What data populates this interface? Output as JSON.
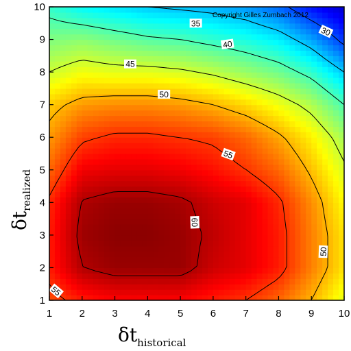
{
  "chart_data": {
    "type": "heatmap",
    "subtype": "contour",
    "copyright": "Copyright Gilles Zumbach 2012",
    "x": [
      1,
      2,
      3,
      4,
      5,
      6,
      7,
      8,
      9,
      10
    ],
    "y": [
      1,
      2,
      3,
      4,
      5,
      6,
      7,
      8,
      9,
      10
    ],
    "xlim": [
      1,
      10
    ],
    "ylim": [
      1,
      10
    ],
    "xticks": [
      "1",
      "2",
      "3",
      "4",
      "5",
      "6",
      "7",
      "8",
      "9",
      "10"
    ],
    "yticks": [
      "1",
      "2",
      "3",
      "4",
      "5",
      "6",
      "7",
      "8",
      "9",
      "10"
    ],
    "xlabel": {
      "main": "δt",
      "sub": "historical"
    },
    "ylabel": {
      "main": "δt",
      "sub": "realized"
    },
    "z_rows_from_y1": [
      [
        54,
        56,
        57,
        57,
        57,
        56,
        55,
        53,
        50,
        46
      ],
      [
        56,
        60,
        61,
        61,
        61,
        59,
        58,
        56,
        52,
        48
      ],
      [
        56,
        60.8,
        61.5,
        61.5,
        61,
        59.5,
        58,
        56,
        52,
        48
      ],
      [
        55.5,
        60.2,
        61,
        61,
        60.5,
        59,
        58,
        55.5,
        51.5,
        47
      ],
      [
        53,
        57.5,
        58,
        58,
        57.5,
        56.5,
        55,
        53,
        49.5,
        45.5
      ],
      [
        51,
        54.5,
        55.5,
        55.5,
        55,
        54.5,
        53,
        50.5,
        47.5,
        43.5
      ],
      [
        49,
        51,
        51.5,
        51.5,
        51,
        50,
        48.5,
        46.5,
        44,
        40
      ],
      [
        45,
        46.5,
        46,
        46,
        45.5,
        44.5,
        43,
        41.5,
        39,
        35
      ],
      [
        42,
        42.5,
        41.5,
        40.5,
        40,
        39,
        38,
        36.5,
        33.5,
        29
      ],
      [
        39,
        37,
        36,
        35,
        34.5,
        34,
        33,
        31,
        27.5,
        25
      ]
    ],
    "contour_levels": [
      30,
      35,
      40,
      45,
      50,
      55,
      60
    ],
    "contour_labels": [
      {
        "text": "35",
        "x": 5.47,
        "y": 9.49,
        "angle": 0
      },
      {
        "text": "30",
        "x": 9.44,
        "y": 9.24,
        "angle": 25
      },
      {
        "text": "40",
        "x": 6.44,
        "y": 8.85,
        "angle": -8
      },
      {
        "text": "45",
        "x": 3.47,
        "y": 8.24,
        "angle": 0
      },
      {
        "text": "50",
        "x": 4.5,
        "y": 7.31,
        "angle": 0
      },
      {
        "text": "55",
        "x": 6.46,
        "y": 5.47,
        "angle": 20
      },
      {
        "text": "60",
        "x": 5.43,
        "y": 3.39,
        "angle": 88
      },
      {
        "text": "50",
        "x": 9.37,
        "y": 2.49,
        "angle": -88
      },
      {
        "text": "55",
        "x": 1.2,
        "y": 1.28,
        "angle": 40
      }
    ],
    "colormap": "jet",
    "colormap_range": [
      22,
      62
    ],
    "grid": false
  }
}
